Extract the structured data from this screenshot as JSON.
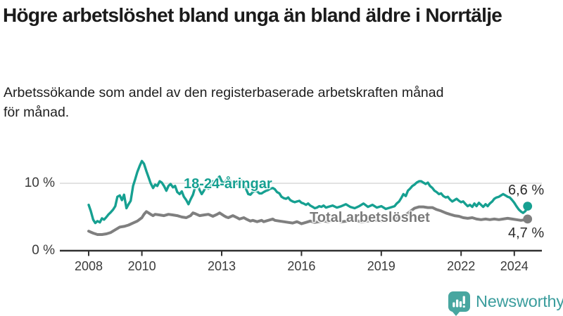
{
  "header": {
    "title": "Högre arbetslöshet bland unga än bland äldre i Norrtälje",
    "subtitle_lines": [
      "Arbetssökande som andel av den registerbaserade arbetskraften månad",
      "för månad."
    ]
  },
  "chart_data": {
    "type": "line",
    "title": "Högre arbetslöshet bland unga än bland äldre i Norrtälje",
    "subtitle": "Arbetssökande som andel av den registerbaserade arbetskraften månad för månad.",
    "unit": "%",
    "grid": "horizontal line at 10 % only",
    "legend_position": "labels inline on lines, end values at right",
    "axis_color": "#303030",
    "grid_color": "#d9d9d9",
    "tick_label_color": "#3a3a3a",
    "x_axis": {
      "ticks": [
        2008,
        2010,
        2013,
        2016,
        2019,
        2022,
        2024
      ],
      "labels": [
        "2008",
        "2010",
        "2013",
        "2016",
        "2019",
        "2022",
        "2024"
      ],
      "range": [
        2006.9,
        2025.1
      ]
    },
    "y_axis": {
      "ticks": [
        0,
        10
      ],
      "labels": [
        "0 %",
        "10 %"
      ],
      "range": [
        0,
        15.8
      ]
    },
    "series": [
      {
        "id": "youth",
        "name": "18-24-åringar",
        "color": "#16a091",
        "end_label": "6,6 %",
        "end_value": 6.6,
        "points": [
          [
            2008.0,
            6.8
          ],
          [
            2008.08,
            5.9
          ],
          [
            2008.17,
            4.6
          ],
          [
            2008.25,
            4.1
          ],
          [
            2008.33,
            4.4
          ],
          [
            2008.42,
            4.2
          ],
          [
            2008.5,
            4.8
          ],
          [
            2008.58,
            4.6
          ],
          [
            2008.67,
            5.0
          ],
          [
            2008.75,
            5.4
          ],
          [
            2008.83,
            5.7
          ],
          [
            2008.92,
            6.1
          ],
          [
            2009.0,
            6.6
          ],
          [
            2009.08,
            8.0
          ],
          [
            2009.17,
            8.2
          ],
          [
            2009.25,
            7.5
          ],
          [
            2009.33,
            8.3
          ],
          [
            2009.42,
            6.3
          ],
          [
            2009.5,
            6.9
          ],
          [
            2009.58,
            7.4
          ],
          [
            2009.67,
            9.6
          ],
          [
            2009.75,
            10.6
          ],
          [
            2009.83,
            11.7
          ],
          [
            2009.92,
            12.6
          ],
          [
            2010.0,
            13.3
          ],
          [
            2010.08,
            12.9
          ],
          [
            2010.17,
            11.8
          ],
          [
            2010.25,
            10.9
          ],
          [
            2010.33,
            10.0
          ],
          [
            2010.42,
            9.3
          ],
          [
            2010.5,
            9.8
          ],
          [
            2010.58,
            9.6
          ],
          [
            2010.67,
            10.3
          ],
          [
            2010.75,
            10.1
          ],
          [
            2010.83,
            9.6
          ],
          [
            2010.92,
            8.9
          ],
          [
            2011.0,
            9.6
          ],
          [
            2011.08,
            9.9
          ],
          [
            2011.17,
            9.4
          ],
          [
            2011.25,
            9.6
          ],
          [
            2011.33,
            8.7
          ],
          [
            2011.42,
            8.4
          ],
          [
            2011.5,
            8.8
          ],
          [
            2011.58,
            8.0
          ],
          [
            2011.67,
            7.5
          ],
          [
            2011.75,
            6.9
          ],
          [
            2011.83,
            7.6
          ],
          [
            2011.92,
            8.3
          ],
          [
            2012.0,
            9.4
          ],
          [
            2012.08,
            10.0
          ],
          [
            2012.17,
            9.0
          ],
          [
            2012.25,
            8.4
          ],
          [
            2012.33,
            8.9
          ],
          [
            2012.42,
            9.6
          ],
          [
            2012.5,
            9.2
          ],
          [
            2012.58,
            9.8
          ],
          [
            2012.67,
            10.3
          ],
          [
            2012.75,
            10.0
          ],
          [
            2012.83,
            10.6
          ],
          [
            2012.92,
            11.0
          ],
          [
            2013.0,
            10.3
          ],
          [
            2013.08,
            10.0
          ],
          [
            2013.17,
            10.4
          ],
          [
            2013.25,
            10.8
          ],
          [
            2013.33,
            10.3
          ],
          [
            2013.42,
            10.0
          ],
          [
            2013.5,
            10.2
          ],
          [
            2013.58,
            9.9
          ],
          [
            2013.67,
            10.1
          ],
          [
            2013.75,
            10.4
          ],
          [
            2013.83,
            9.8
          ],
          [
            2013.92,
            9.1
          ],
          [
            2014.0,
            8.4
          ],
          [
            2014.08,
            8.3
          ],
          [
            2014.17,
            8.7
          ],
          [
            2014.25,
            8.9
          ],
          [
            2014.33,
            8.8
          ],
          [
            2014.42,
            8.5
          ],
          [
            2014.5,
            8.5
          ],
          [
            2014.58,
            8.7
          ],
          [
            2014.67,
            8.9
          ],
          [
            2014.75,
            9.0
          ],
          [
            2014.83,
            9.2
          ],
          [
            2014.92,
            9.3
          ],
          [
            2015.0,
            9.1
          ],
          [
            2015.08,
            8.7
          ],
          [
            2015.17,
            8.5
          ],
          [
            2015.25,
            8.0
          ],
          [
            2015.33,
            7.8
          ],
          [
            2015.42,
            7.7
          ],
          [
            2015.5,
            7.9
          ],
          [
            2015.58,
            7.5
          ],
          [
            2015.67,
            7.3
          ],
          [
            2015.75,
            7.2
          ],
          [
            2015.83,
            7.3
          ],
          [
            2015.92,
            7.4
          ],
          [
            2016.0,
            7.1
          ],
          [
            2016.08,
            7.0
          ],
          [
            2016.17,
            6.8
          ],
          [
            2016.25,
            7.0
          ],
          [
            2016.33,
            6.7
          ],
          [
            2016.42,
            6.5
          ],
          [
            2016.5,
            6.3
          ],
          [
            2016.58,
            6.4
          ],
          [
            2016.67,
            6.6
          ],
          [
            2016.75,
            6.5
          ],
          [
            2016.83,
            6.7
          ],
          [
            2016.92,
            6.4
          ],
          [
            2017.0,
            6.5
          ],
          [
            2017.17,
            6.7
          ],
          [
            2017.33,
            6.4
          ],
          [
            2017.5,
            6.6
          ],
          [
            2017.67,
            6.9
          ],
          [
            2017.83,
            6.5
          ],
          [
            2018.0,
            6.3
          ],
          [
            2018.17,
            6.6
          ],
          [
            2018.33,
            7.0
          ],
          [
            2018.5,
            6.5
          ],
          [
            2018.67,
            6.8
          ],
          [
            2018.83,
            6.4
          ],
          [
            2019.0,
            6.6
          ],
          [
            2019.17,
            6.2
          ],
          [
            2019.33,
            6.4
          ],
          [
            2019.5,
            6.6
          ],
          [
            2019.58,
            7.0
          ],
          [
            2019.67,
            7.3
          ],
          [
            2019.75,
            7.8
          ],
          [
            2019.83,
            8.4
          ],
          [
            2019.92,
            8.1
          ],
          [
            2020.0,
            8.9
          ],
          [
            2020.08,
            9.2
          ],
          [
            2020.17,
            9.6
          ],
          [
            2020.25,
            9.8
          ],
          [
            2020.33,
            10.1
          ],
          [
            2020.42,
            10.3
          ],
          [
            2020.5,
            10.3
          ],
          [
            2020.58,
            10.1
          ],
          [
            2020.67,
            9.9
          ],
          [
            2020.75,
            10.1
          ],
          [
            2020.83,
            9.6
          ],
          [
            2020.92,
            9.3
          ],
          [
            2021.0,
            8.9
          ],
          [
            2021.08,
            8.7
          ],
          [
            2021.17,
            8.4
          ],
          [
            2021.25,
            8.5
          ],
          [
            2021.33,
            8.1
          ],
          [
            2021.42,
            7.9
          ],
          [
            2021.5,
            8.0
          ],
          [
            2021.58,
            7.6
          ],
          [
            2021.67,
            7.3
          ],
          [
            2021.75,
            7.5
          ],
          [
            2021.83,
            7.7
          ],
          [
            2021.92,
            7.4
          ],
          [
            2022.0,
            7.2
          ],
          [
            2022.08,
            7.3
          ],
          [
            2022.17,
            6.9
          ],
          [
            2022.25,
            6.6
          ],
          [
            2022.33,
            6.8
          ],
          [
            2022.42,
            6.5
          ],
          [
            2022.5,
            7.0
          ],
          [
            2022.58,
            6.6
          ],
          [
            2022.67,
            7.1
          ],
          [
            2022.75,
            6.8
          ],
          [
            2022.83,
            6.5
          ],
          [
            2022.92,
            6.9
          ],
          [
            2023.0,
            6.6
          ],
          [
            2023.08,
            7.0
          ],
          [
            2023.17,
            7.3
          ],
          [
            2023.25,
            7.7
          ],
          [
            2023.33,
            7.9
          ],
          [
            2023.42,
            8.0
          ],
          [
            2023.5,
            8.2
          ],
          [
            2023.58,
            8.4
          ],
          [
            2023.67,
            8.2
          ],
          [
            2023.75,
            8.0
          ],
          [
            2023.83,
            7.9
          ],
          [
            2023.92,
            7.5
          ],
          [
            2024.0,
            7.1
          ],
          [
            2024.08,
            6.6
          ],
          [
            2024.17,
            6.1
          ],
          [
            2024.25,
            5.8
          ],
          [
            2024.33,
            5.6
          ],
          [
            2024.42,
            5.9
          ],
          [
            2024.5,
            6.6
          ]
        ]
      },
      {
        "id": "total",
        "name": "Total arbetslöshet",
        "color": "#7f7f7f",
        "end_label": "4,7 %",
        "end_value": 4.7,
        "points": [
          [
            2008.0,
            2.9
          ],
          [
            2008.17,
            2.6
          ],
          [
            2008.33,
            2.4
          ],
          [
            2008.5,
            2.4
          ],
          [
            2008.67,
            2.5
          ],
          [
            2008.83,
            2.7
          ],
          [
            2009.0,
            3.1
          ],
          [
            2009.17,
            3.5
          ],
          [
            2009.33,
            3.6
          ],
          [
            2009.5,
            3.8
          ],
          [
            2009.67,
            4.1
          ],
          [
            2009.83,
            4.4
          ],
          [
            2010.0,
            4.9
          ],
          [
            2010.08,
            5.4
          ],
          [
            2010.17,
            5.8
          ],
          [
            2010.25,
            5.6
          ],
          [
            2010.33,
            5.4
          ],
          [
            2010.42,
            5.2
          ],
          [
            2010.5,
            5.4
          ],
          [
            2010.67,
            5.3
          ],
          [
            2010.83,
            5.2
          ],
          [
            2011.0,
            5.4
          ],
          [
            2011.17,
            5.3
          ],
          [
            2011.33,
            5.2
          ],
          [
            2011.5,
            5.0
          ],
          [
            2011.67,
            4.9
          ],
          [
            2011.83,
            5.2
          ],
          [
            2011.92,
            5.6
          ],
          [
            2012.0,
            5.5
          ],
          [
            2012.17,
            5.2
          ],
          [
            2012.33,
            5.3
          ],
          [
            2012.5,
            5.4
          ],
          [
            2012.67,
            5.1
          ],
          [
            2012.83,
            5.4
          ],
          [
            2012.92,
            5.6
          ],
          [
            2013.08,
            5.2
          ],
          [
            2013.17,
            5.0
          ],
          [
            2013.25,
            4.9
          ],
          [
            2013.42,
            5.2
          ],
          [
            2013.58,
            4.9
          ],
          [
            2013.67,
            4.7
          ],
          [
            2013.83,
            4.9
          ],
          [
            2013.92,
            4.7
          ],
          [
            2014.08,
            4.4
          ],
          [
            2014.17,
            4.5
          ],
          [
            2014.33,
            4.3
          ],
          [
            2014.5,
            4.5
          ],
          [
            2014.58,
            4.3
          ],
          [
            2014.75,
            4.5
          ],
          [
            2014.92,
            4.7
          ],
          [
            2015.0,
            4.5
          ],
          [
            2015.17,
            4.4
          ],
          [
            2015.33,
            4.3
          ],
          [
            2015.5,
            4.2
          ],
          [
            2015.67,
            4.1
          ],
          [
            2015.83,
            4.3
          ],
          [
            2016.0,
            4.0
          ],
          [
            2016.17,
            4.2
          ],
          [
            2016.33,
            4.4
          ],
          [
            2016.5,
            4.2
          ],
          [
            2016.67,
            4.3
          ],
          [
            2016.83,
            4.4
          ],
          [
            2017.0,
            4.3
          ],
          [
            2017.25,
            4.5
          ],
          [
            2017.5,
            4.3
          ],
          [
            2017.75,
            4.4
          ],
          [
            2018.0,
            4.5
          ],
          [
            2018.25,
            4.3
          ],
          [
            2018.5,
            4.4
          ],
          [
            2018.75,
            4.5
          ],
          [
            2019.0,
            4.4
          ],
          [
            2019.25,
            4.6
          ],
          [
            2019.5,
            4.7
          ],
          [
            2019.75,
            5.0
          ],
          [
            2019.92,
            5.3
          ],
          [
            2020.08,
            5.8
          ],
          [
            2020.25,
            6.3
          ],
          [
            2020.42,
            6.5
          ],
          [
            2020.58,
            6.5
          ],
          [
            2020.75,
            6.4
          ],
          [
            2020.92,
            6.4
          ],
          [
            2021.08,
            6.1
          ],
          [
            2021.25,
            5.9
          ],
          [
            2021.42,
            5.6
          ],
          [
            2021.58,
            5.4
          ],
          [
            2021.75,
            5.2
          ],
          [
            2021.92,
            5.1
          ],
          [
            2022.08,
            4.9
          ],
          [
            2022.25,
            4.8
          ],
          [
            2022.42,
            4.9
          ],
          [
            2022.58,
            4.7
          ],
          [
            2022.75,
            4.6
          ],
          [
            2022.92,
            4.7
          ],
          [
            2023.08,
            4.6
          ],
          [
            2023.25,
            4.7
          ],
          [
            2023.42,
            4.6
          ],
          [
            2023.58,
            4.7
          ],
          [
            2023.75,
            4.8
          ],
          [
            2023.92,
            4.7
          ],
          [
            2024.08,
            4.6
          ],
          [
            2024.25,
            4.5
          ],
          [
            2024.42,
            4.6
          ],
          [
            2024.5,
            4.7
          ]
        ]
      }
    ]
  },
  "footer": {
    "brand": "Newsworthy",
    "brand_color": "#3b9d9d",
    "brand_icon": "bar-chart-speech-bubble-icon",
    "brand_icon_color": "#48a6a0"
  },
  "colors": {
    "background": "#ffffff",
    "title_text": "#1b1b1b",
    "youth_line": "#16a091",
    "total_line": "#7f7f7f",
    "axis": "#303030",
    "gridline": "#d9d9d9"
  }
}
